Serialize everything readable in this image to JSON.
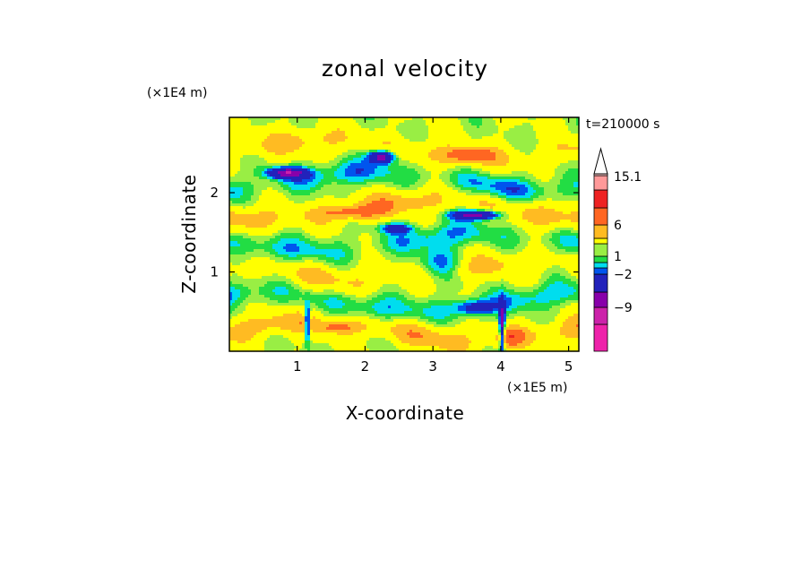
{
  "chart_data": {
    "type": "heatmap",
    "title": "zonal velocity",
    "xlabel": "X-coordinate",
    "ylabel": "Z-coordinate",
    "x_unit": "(×1E5 m)",
    "y_unit": "(×1E4 m)",
    "time_label": "t=210000 s",
    "xlim": [
      0,
      5.15
    ],
    "ylim": [
      0,
      2.95
    ],
    "x_ticks": [
      1,
      2,
      3,
      4,
      5
    ],
    "x_tick_labels": [
      "1",
      "2",
      "3",
      "4",
      "5"
    ],
    "y_ticks": [
      1,
      2
    ],
    "y_tick_labels": [
      "1",
      "2"
    ],
    "grid": false,
    "colorbar": {
      "levels": [
        -15,
        -12,
        -9,
        -6,
        -2,
        -1,
        0,
        1,
        2,
        4,
        6,
        9,
        12,
        15.1
      ],
      "colors": [
        "#ee22aa",
        "#cc22aa",
        "#8800aa",
        "#2222bb",
        "#0055ee",
        "#00ddee",
        "#22dd44",
        "#99ee44",
        "#ffff00",
        "#ffbb22",
        "#ff6622",
        "#ee2222",
        "#ff9999",
        "#ffcccc"
      ],
      "labels": [
        {
          "value": 15.1,
          "text": "15.1"
        },
        {
          "value": 6,
          "text": "6"
        },
        {
          "value": 1,
          "text": "1"
        },
        {
          "value": -2,
          "text": "−2"
        },
        {
          "value": -9,
          "text": "−9"
        }
      ],
      "overflow_color": "#ffffff"
    },
    "field": {
      "base": 2,
      "layers": [
        {
          "z": 0.25,
          "amp": 3.0
        },
        {
          "z": 0.62,
          "amp": -2.6
        },
        {
          "z": 1.0,
          "amp": 2.2
        },
        {
          "z": 1.38,
          "amp": -2.6
        },
        {
          "z": 1.78,
          "amp": 3.2
        },
        {
          "z": 2.15,
          "amp": -3.0
        },
        {
          "z": 2.55,
          "amp": 2.6
        }
      ],
      "features": [
        {
          "x": 0.85,
          "z": 2.25,
          "sx": 0.28,
          "sz": 0.07,
          "amp": -10
        },
        {
          "x": 2.25,
          "z": 2.45,
          "sx": 0.18,
          "sz": 0.08,
          "amp": -10
        },
        {
          "x": 3.65,
          "z": 1.72,
          "sx": 0.35,
          "sz": 0.06,
          "amp": -10
        },
        {
          "x": 2.45,
          "z": 1.55,
          "sx": 0.22,
          "sz": 0.06,
          "amp": -6
        },
        {
          "x": 3.55,
          "z": 2.48,
          "sx": 0.3,
          "sz": 0.08,
          "amp": 5
        },
        {
          "x": 1.8,
          "z": 1.75,
          "sx": 0.45,
          "sz": 0.08,
          "amp": 4
        },
        {
          "x": 1.6,
          "z": 0.3,
          "sx": 0.35,
          "sz": 0.08,
          "amp": 4
        },
        {
          "x": 1.15,
          "z": 0.35,
          "sx": 0.04,
          "sz": 0.22,
          "amp": -9
        },
        {
          "x": 4.02,
          "z": 0.3,
          "sx": 0.04,
          "sz": 0.28,
          "amp": -10
        },
        {
          "x": 4.15,
          "z": 0.18,
          "sx": 0.2,
          "sz": 0.12,
          "amp": 5
        },
        {
          "x": 3.6,
          "z": 0.55,
          "sx": 0.3,
          "sz": 0.1,
          "amp": -5
        },
        {
          "x": 3.1,
          "z": 1.1,
          "sx": 0.3,
          "sz": 0.25,
          "amp": -3
        }
      ]
    }
  }
}
